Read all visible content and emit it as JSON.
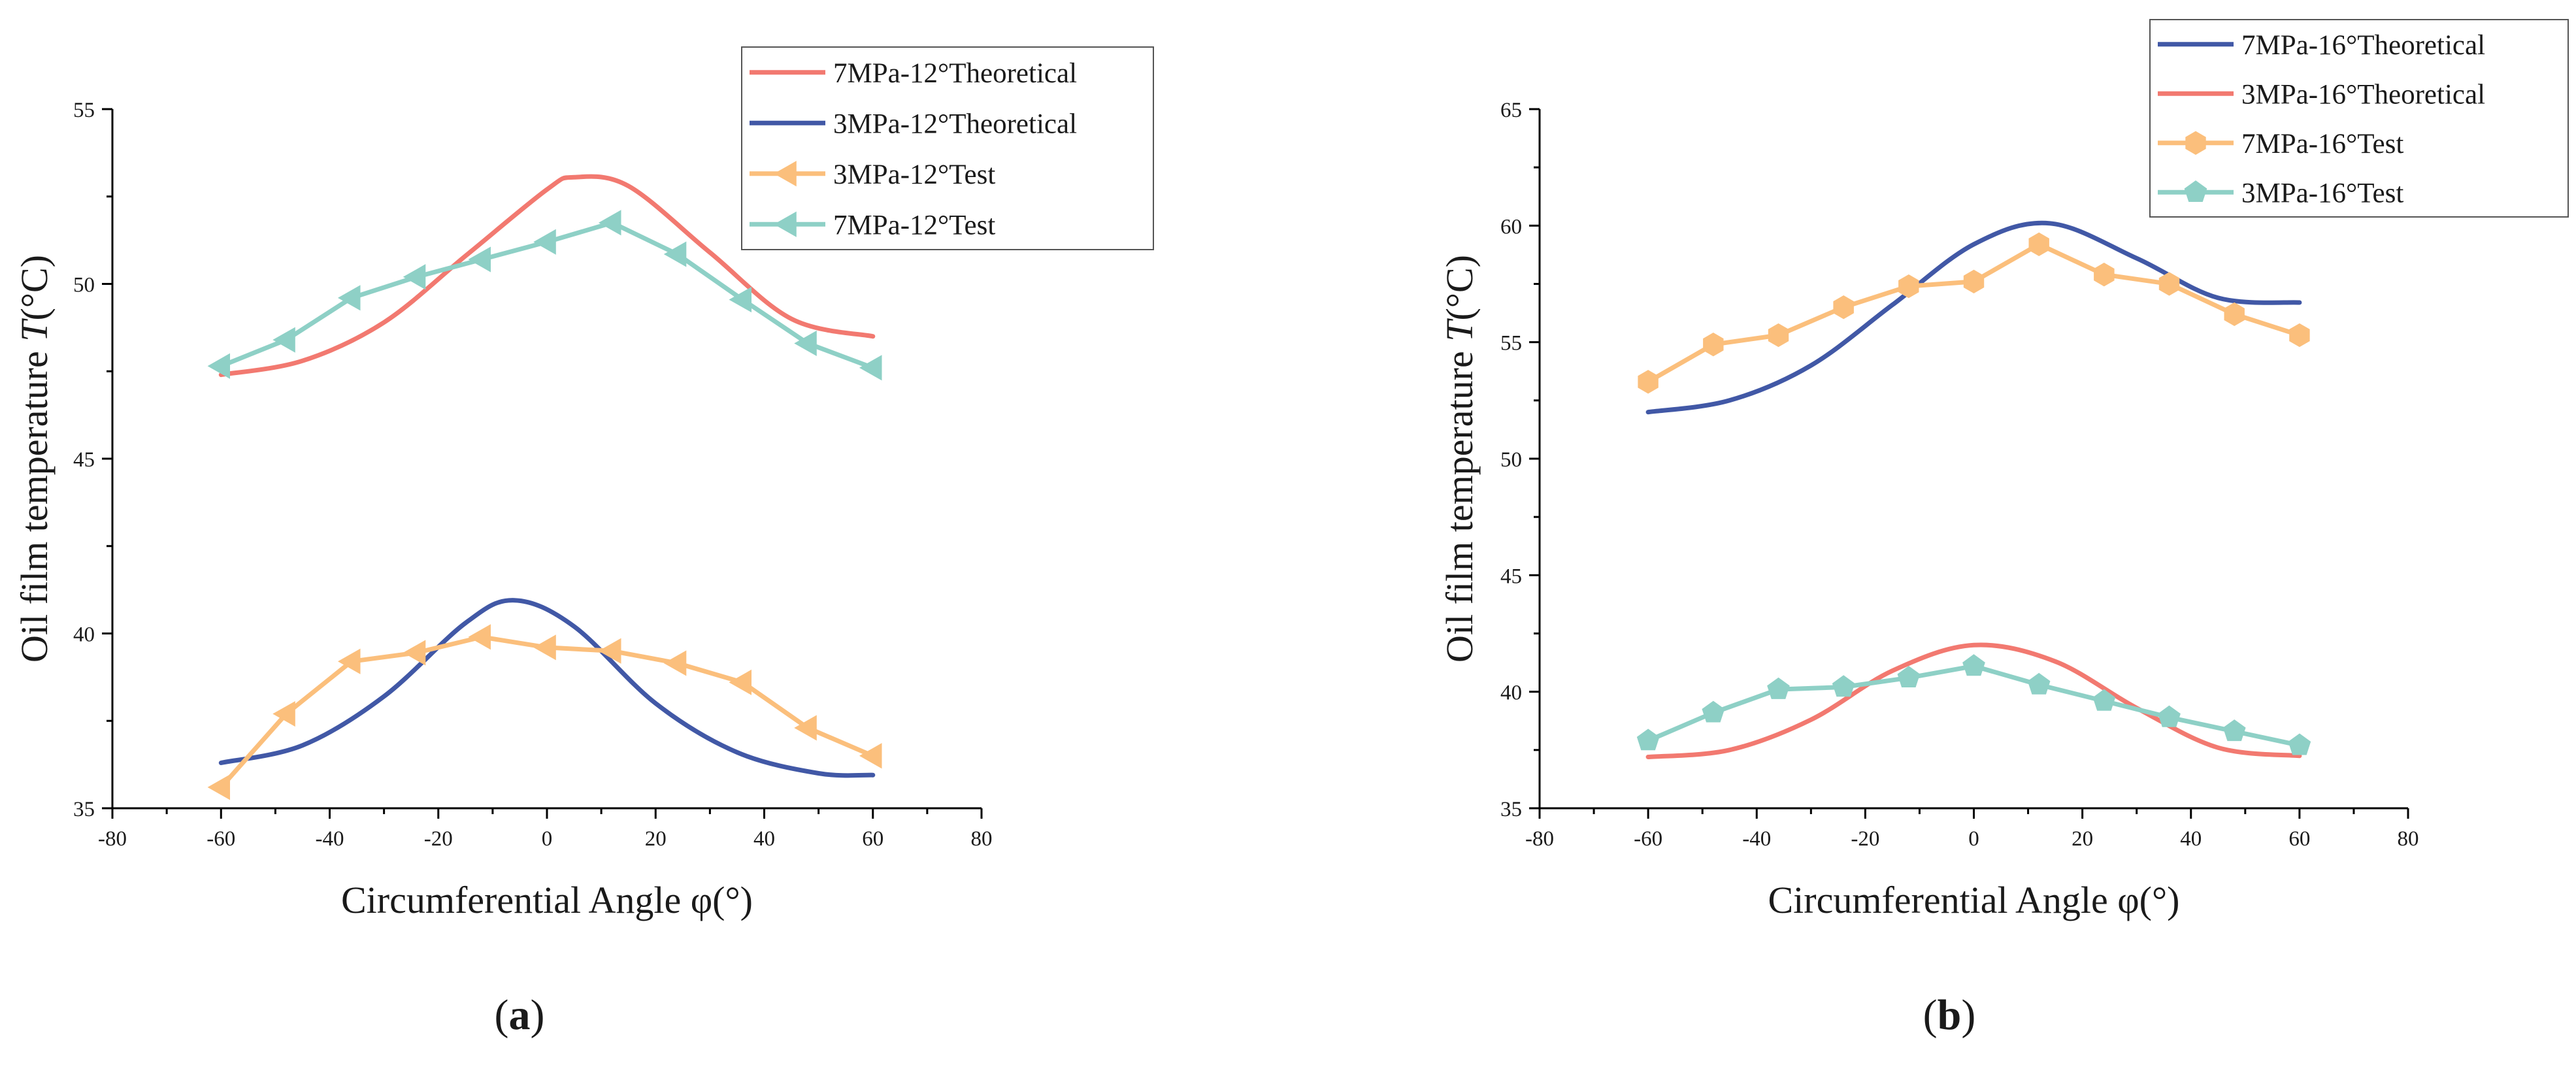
{
  "chart_data": [
    {
      "type": "line",
      "panel": "a",
      "panel_label": "a",
      "title": "",
      "xlabel": "Circumferential Angle φ(°)",
      "ylabel_main": "Oil film temperature ",
      "ylabel_italic": "T",
      "ylabel_unit": "(°C)",
      "xlim": [
        -80,
        80
      ],
      "ylim": [
        35,
        55
      ],
      "xticks": [
        -80,
        -60,
        -40,
        -20,
        0,
        20,
        40,
        60,
        80
      ],
      "yticks": [
        35,
        40,
        45,
        50,
        55
      ],
      "grid": false,
      "legend_position": "top-right",
      "series": [
        {
          "name": "7MPa-12°Theoretical",
          "style": "smooth-line",
          "color": "#f27970",
          "x": [
            -60,
            -45,
            -30,
            -15,
            0,
            5,
            15,
            30,
            45,
            60
          ],
          "y": [
            47.4,
            47.8,
            48.9,
            50.8,
            52.7,
            53.05,
            52.8,
            50.9,
            49.0,
            48.5
          ]
        },
        {
          "name": "3MPa-12°Theoretical",
          "style": "smooth-line",
          "color": "#4158a6",
          "x": [
            -60,
            -45,
            -30,
            -15,
            -6,
            5,
            20,
            35,
            50,
            60
          ],
          "y": [
            36.3,
            36.8,
            38.2,
            40.3,
            40.95,
            40.2,
            38.0,
            36.6,
            36.0,
            35.95
          ]
        },
        {
          "name": "3MPa-12°Test",
          "style": "marker-line",
          "marker": "triangle-left",
          "color": "#fbbf7c",
          "x": [
            -60,
            -48,
            -36,
            -24,
            -12,
            0,
            12,
            24,
            36,
            48,
            60
          ],
          "y": [
            35.6,
            37.7,
            39.2,
            39.45,
            39.9,
            39.6,
            39.5,
            39.15,
            38.6,
            37.3,
            36.5
          ]
        },
        {
          "name": "7MPa-12°Test",
          "style": "marker-line",
          "marker": "triangle-left",
          "color": "#8ed0c6",
          "x": [
            -60,
            -48,
            -36,
            -24,
            -12,
            0,
            12,
            24,
            36,
            48,
            60
          ],
          "y": [
            47.65,
            48.4,
            49.6,
            50.2,
            50.7,
            51.2,
            51.75,
            50.85,
            49.55,
            48.3,
            47.6
          ]
        }
      ]
    },
    {
      "type": "line",
      "panel": "b",
      "panel_label": "b",
      "title": "",
      "xlabel": "Circumferential Angle φ(°)",
      "ylabel_main": "Oil film temperature ",
      "ylabel_italic": "T",
      "ylabel_unit": "(°C)",
      "xlim": [
        -80,
        80
      ],
      "ylim": [
        35,
        65
      ],
      "xticks": [
        -80,
        -60,
        -40,
        -20,
        0,
        20,
        40,
        60,
        80
      ],
      "yticks": [
        35,
        40,
        45,
        50,
        55,
        60,
        65
      ],
      "grid": false,
      "legend_position": "top-right",
      "series": [
        {
          "name": "7MPa-16°Theoretical",
          "style": "smooth-line",
          "color": "#4158a6",
          "x": [
            -60,
            -45,
            -30,
            -15,
            0,
            14,
            30,
            45,
            60
          ],
          "y": [
            52.0,
            52.5,
            54.0,
            56.6,
            59.2,
            60.1,
            58.6,
            56.9,
            56.7
          ]
        },
        {
          "name": "3MPa-16°Theoretical",
          "style": "smooth-line",
          "color": "#f27970",
          "x": [
            -60,
            -45,
            -30,
            -15,
            0,
            15,
            30,
            45,
            60
          ],
          "y": [
            37.2,
            37.5,
            38.8,
            40.9,
            42.0,
            41.3,
            39.3,
            37.6,
            37.25
          ]
        },
        {
          "name": "7MPa-16°Test",
          "style": "marker-line",
          "marker": "hexagon",
          "color": "#fbbf7c",
          "x": [
            -60,
            -48,
            -36,
            -24,
            -12,
            0,
            12,
            24,
            36,
            48,
            60
          ],
          "y": [
            53.3,
            54.9,
            55.3,
            56.5,
            57.4,
            57.6,
            59.2,
            57.9,
            57.5,
            56.2,
            55.3
          ]
        },
        {
          "name": "3MPa-16°Test",
          "style": "marker-line",
          "marker": "pentagon",
          "color": "#8ed0c6",
          "x": [
            -60,
            -48,
            -36,
            -24,
            -12,
            0,
            12,
            24,
            36,
            48,
            60
          ],
          "y": [
            37.9,
            39.1,
            40.1,
            40.2,
            40.6,
            41.1,
            40.3,
            39.6,
            38.9,
            38.3,
            37.7
          ]
        }
      ]
    }
  ]
}
